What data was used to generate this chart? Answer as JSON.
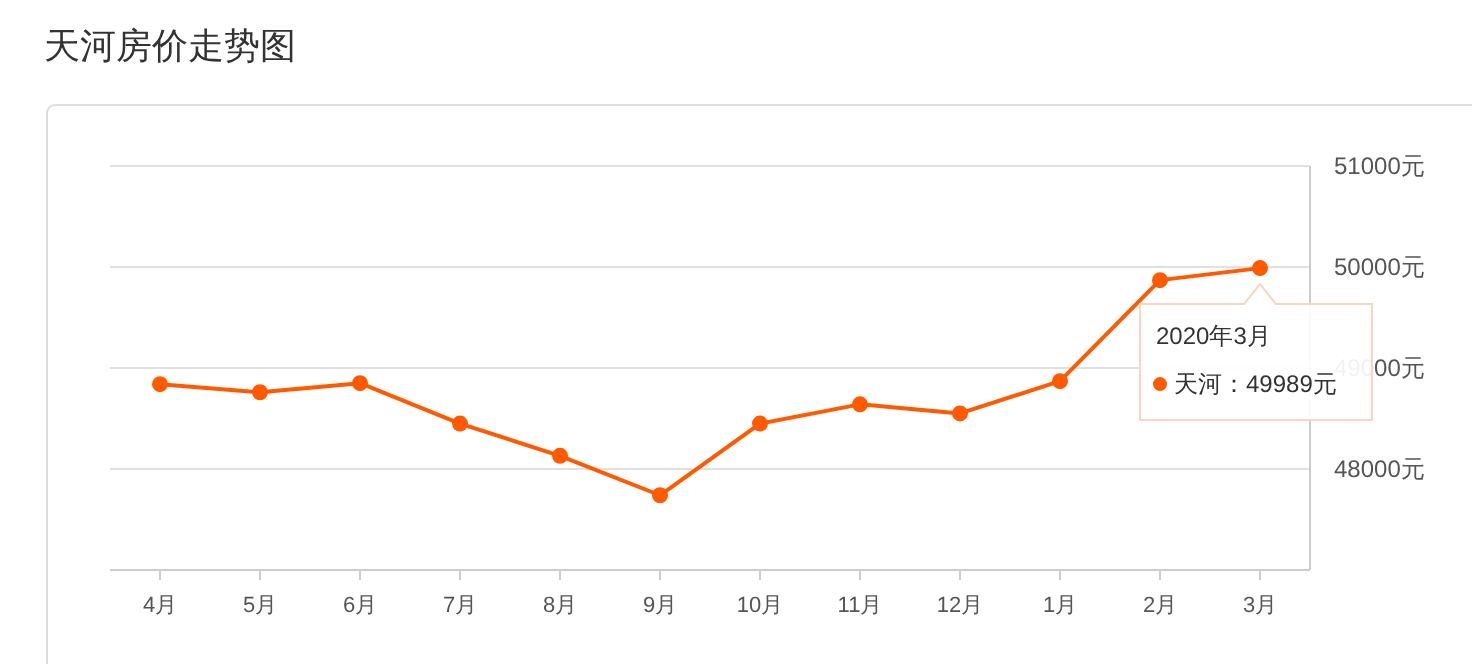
{
  "chart_data": {
    "type": "line",
    "title": "天河房价走势图",
    "categories": [
      "4月",
      "5月",
      "6月",
      "7月",
      "8月",
      "9月",
      "10月",
      "11月",
      "12月",
      "1月",
      "2月",
      "3月"
    ],
    "series": [
      {
        "name": "天河",
        "color": "#ff5a00",
        "values": [
          48840,
          48760,
          48850,
          48450,
          48130,
          47740,
          48450,
          48640,
          48550,
          48870,
          49870,
          49989
        ]
      }
    ],
    "annotations": [
      "2020年3月",
      "：49989元"
    ],
    "ylim": [
      47000,
      51000
    ],
    "yticks": [
      {
        "value": 47000,
        "label": null
      },
      {
        "value": 48000,
        "label": "48000元"
      },
      {
        "value": 49000,
        "label": "49000元"
      },
      {
        "value": 50000,
        "label": "50000元"
      },
      {
        "value": 51000,
        "label": "51000元"
      }
    ],
    "grid": "y",
    "marker": "circle",
    "line_style": "solid",
    "legend": "right"
  }
}
